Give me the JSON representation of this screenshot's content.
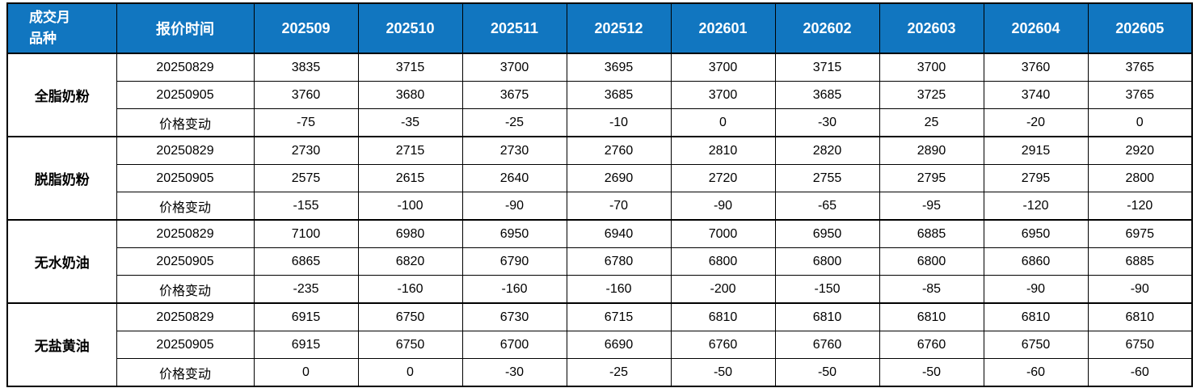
{
  "colors": {
    "header_bg": "#1176c0",
    "header_text": "#ffffff",
    "border": "#000000",
    "body_text": "#000000",
    "change_negative": "#00b050",
    "change_positive": "#c00000",
    "change_zero": "#000000"
  },
  "header": {
    "corner_line1": "成交月",
    "corner_line2": "品种",
    "quote_time_label": "报价时间",
    "months": [
      "202509",
      "202510",
      "202511",
      "202512",
      "202601",
      "202602",
      "202603",
      "202604",
      "202605"
    ]
  },
  "change_row_label": "价格变动",
  "groups": [
    {
      "product": "全脂奶粉",
      "rows": [
        {
          "label": "20250829",
          "type": "price",
          "values": [
            3835,
            3715,
            3700,
            3695,
            3700,
            3715,
            3700,
            3760,
            3765
          ]
        },
        {
          "label": "20250905",
          "type": "price",
          "values": [
            3760,
            3680,
            3675,
            3685,
            3700,
            3685,
            3725,
            3740,
            3765
          ]
        },
        {
          "label": "价格变动",
          "type": "change",
          "values": [
            -75,
            -35,
            -25,
            -10,
            0,
            -30,
            25,
            -20,
            0
          ]
        }
      ]
    },
    {
      "product": "脱脂奶粉",
      "rows": [
        {
          "label": "20250829",
          "type": "price",
          "values": [
            2730,
            2715,
            2730,
            2760,
            2810,
            2820,
            2890,
            2915,
            2920
          ]
        },
        {
          "label": "20250905",
          "type": "price",
          "values": [
            2575,
            2615,
            2640,
            2690,
            2720,
            2755,
            2795,
            2795,
            2800
          ]
        },
        {
          "label": "价格变动",
          "type": "change",
          "values": [
            -155,
            -100,
            -90,
            -70,
            -90,
            -65,
            -95,
            -120,
            -120
          ]
        }
      ]
    },
    {
      "product": "无水奶油",
      "rows": [
        {
          "label": "20250829",
          "type": "price",
          "values": [
            7100,
            6980,
            6950,
            6940,
            7000,
            6950,
            6885,
            6950,
            6975
          ]
        },
        {
          "label": "20250905",
          "type": "price",
          "values": [
            6865,
            6820,
            6790,
            6780,
            6800,
            6800,
            6800,
            6860,
            6885
          ]
        },
        {
          "label": "价格变动",
          "type": "change",
          "values": [
            -235,
            -160,
            -160,
            -160,
            -200,
            -150,
            -85,
            -90,
            -90
          ]
        }
      ]
    },
    {
      "product": "无盐黄油",
      "rows": [
        {
          "label": "20250829",
          "type": "price",
          "values": [
            6915,
            6750,
            6730,
            6715,
            6810,
            6810,
            6810,
            6810,
            6810
          ]
        },
        {
          "label": "20250905",
          "type": "price",
          "values": [
            6915,
            6750,
            6700,
            6690,
            6760,
            6760,
            6760,
            6750,
            6750
          ]
        },
        {
          "label": "价格变动",
          "type": "change",
          "values": [
            0,
            0,
            -30,
            -25,
            -50,
            -50,
            -50,
            -60,
            -60
          ]
        }
      ]
    }
  ],
  "layout": {
    "col_product_width": 135,
    "col_quote_width": 170,
    "col_month_width": 129
  }
}
